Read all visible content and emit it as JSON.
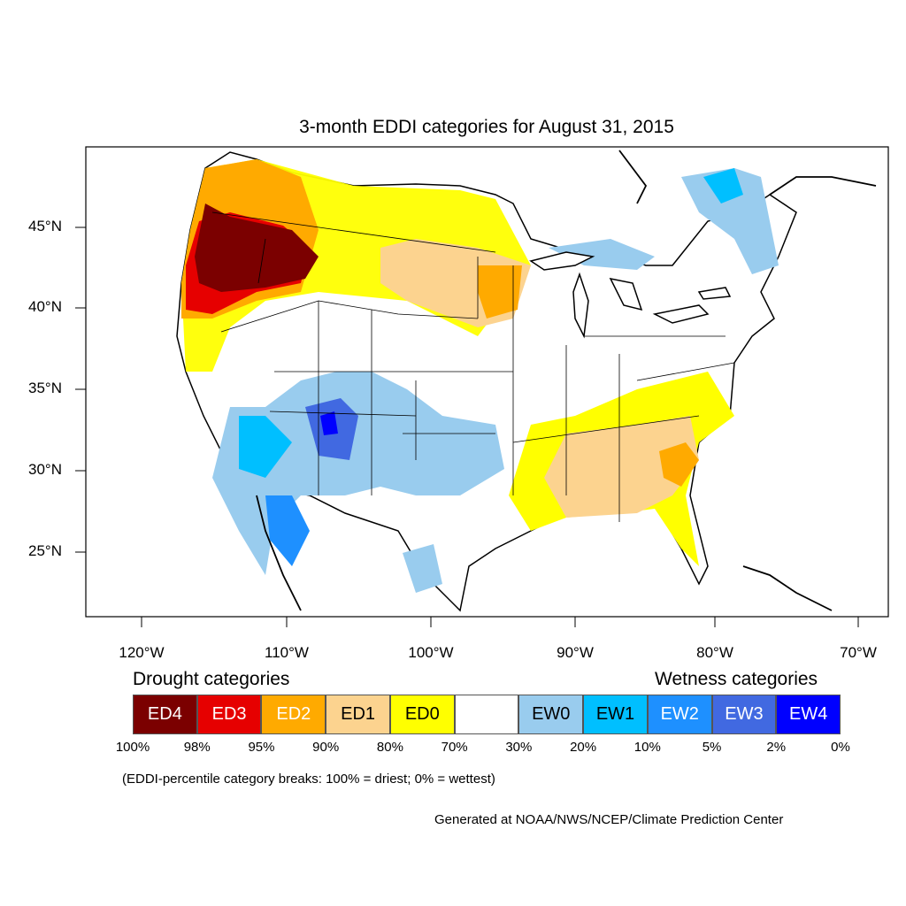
{
  "title": "3-month EDDI categories for August 31, 2015",
  "latitude_labels": [
    "45°N",
    "40°N",
    "35°N",
    "30°N",
    "25°N"
  ],
  "longitude_labels": [
    "120°W",
    "110°W",
    "100°W",
    "90°W",
    "80°W",
    "70°W"
  ],
  "legend": {
    "drought_heading": "Drought categories",
    "wetness_heading": "Wetness categories",
    "categories": [
      {
        "label": "ED4",
        "color": "#7b0000",
        "text_color": "#ffffff"
      },
      {
        "label": "ED3",
        "color": "#e60000",
        "text_color": "#ffffff"
      },
      {
        "label": "ED2",
        "color": "#ffaa00",
        "text_color": "#ffffff"
      },
      {
        "label": "ED1",
        "color": "#fcd38f",
        "text_color": "#000000"
      },
      {
        "label": "ED0",
        "color": "#ffff00",
        "text_color": "#000000"
      },
      {
        "label": "",
        "color": "#ffffff",
        "text_color": "#000000"
      },
      {
        "label": "EW0",
        "color": "#99ccee",
        "text_color": "#000000"
      },
      {
        "label": "EW1",
        "color": "#00bfff",
        "text_color": "#000000"
      },
      {
        "label": "EW2",
        "color": "#1e90ff",
        "text_color": "#ffffff"
      },
      {
        "label": "EW3",
        "color": "#4169e1",
        "text_color": "#ffffff"
      },
      {
        "label": "EW4",
        "color": "#0000ff",
        "text_color": "#ffffff"
      }
    ],
    "breaks": [
      "100%",
      "98%",
      "95%",
      "90%",
      "80%",
      "70%",
      "30%",
      "20%",
      "10%",
      "5%",
      "2%",
      "0%"
    ]
  },
  "note": "(EDDI-percentile category breaks: 100% = driest; 0% = wettest)",
  "credit": "Generated at NOAA/NWS/NCEP/Climate Prediction Center"
}
